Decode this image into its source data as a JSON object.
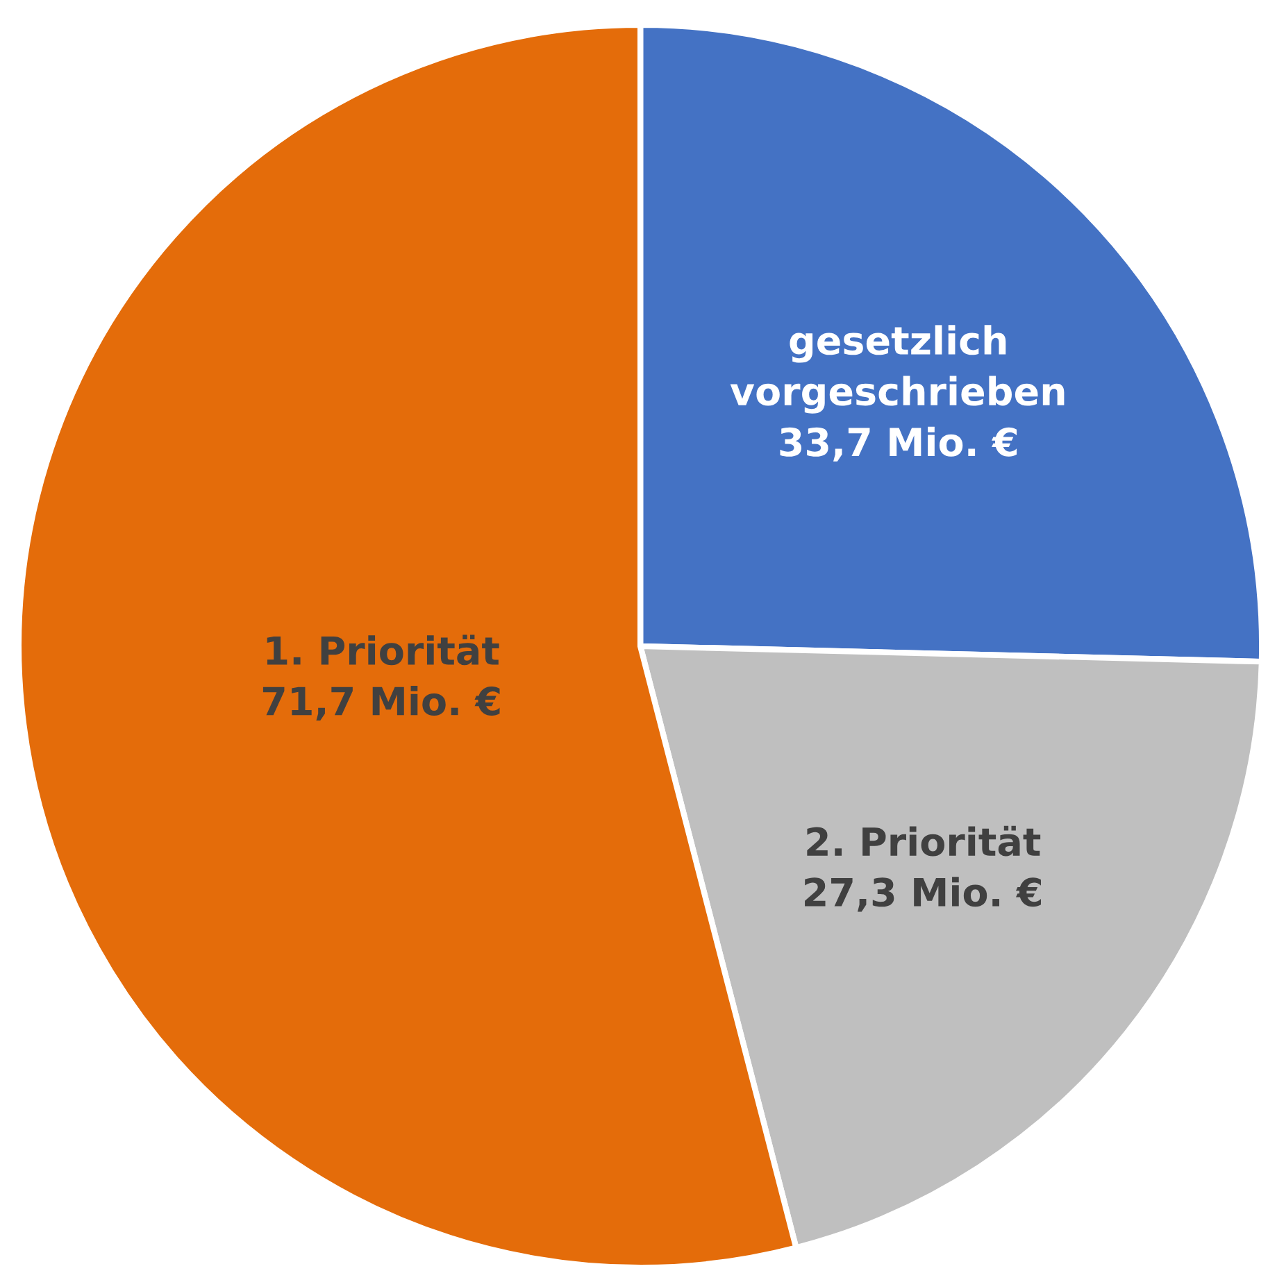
{
  "chart_data": {
    "type": "pie",
    "categories": [
      "gesetzlich\nvorgeschrieben",
      "2. Priorität",
      "1. Priorität"
    ],
    "values": [
      33.7,
      27.3,
      71.7
    ],
    "value_labels": [
      "33,7 Mio. €",
      "27,3 Mio. €",
      "71,7 Mio. €"
    ],
    "colors": [
      "#4472c4",
      "#bfbfbf",
      "#e46c0a"
    ]
  }
}
